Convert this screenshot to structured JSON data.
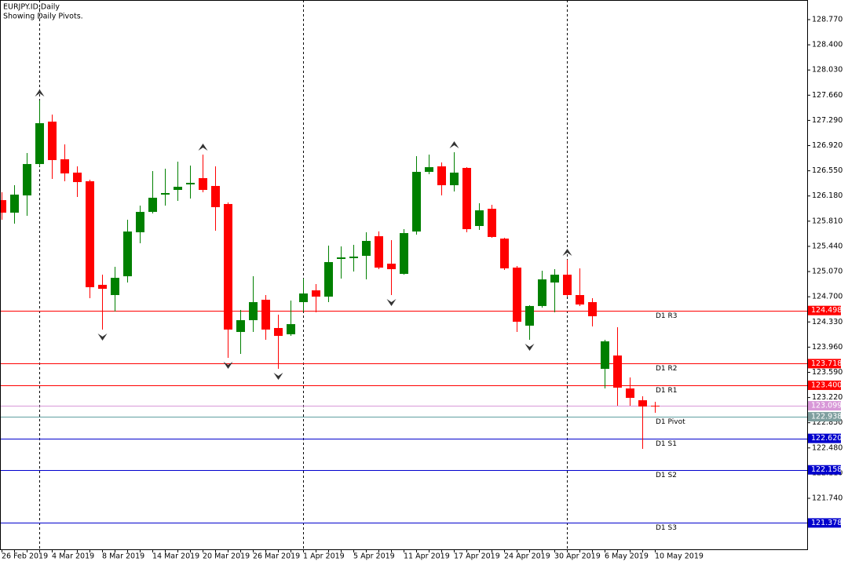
{
  "chart_data": {
    "type": "candlestick",
    "title": "EURJPY.ID,Daily",
    "subtitle": "Showing Daily Pivots.",
    "categories": [
      "26 Feb 2019",
      null,
      null,
      null,
      "4 Mar 2019",
      null,
      null,
      null,
      "8 Mar 2019",
      null,
      null,
      null,
      "14 Mar 2019",
      null,
      null,
      null,
      "20 Mar 2019",
      null,
      null,
      null,
      "26 Mar 2019",
      null,
      null,
      null,
      "1 Apr 2019",
      null,
      null,
      null,
      "5 Apr 2019",
      null,
      null,
      null,
      "11 Apr 2019",
      null,
      null,
      null,
      "17 Apr 2019",
      null,
      null,
      null,
      "24 Apr 2019",
      null,
      null,
      null,
      "30 Apr 2019",
      null,
      null,
      null,
      "6 May 2019",
      null,
      null,
      null,
      "10 May 2019"
    ],
    "open": [
      126.119,
      125.935,
      126.188,
      126.649,
      127.272,
      126.719,
      126.523,
      126.396,
      124.875,
      124.725,
      125.001,
      125.647,
      125.946,
      126.2,
      126.269,
      126.35,
      126.442,
      126.327,
      126.062,
      124.183,
      124.356,
      124.656,
      124.241,
      124.149,
      124.621,
      124.794,
      124.702,
      125.255,
      125.267,
      125.301,
      125.589,
      125.186,
      125.036,
      125.658,
      126.534,
      126.615,
      126.338,
      126.592,
      125.739,
      125.992,
      125.554,
      125.128,
      124.275,
      124.564,
      124.909,
      125.024,
      124.725,
      124.621,
      123.641,
      123.837,
      123.353,
      123.18,
      123.1
    ],
    "high": [
      126.234,
      126.338,
      126.811,
      127.583,
      127.376,
      126.937,
      126.615,
      126.419,
      125.024,
      125.14,
      125.831,
      126.039,
      126.546,
      126.58,
      126.684,
      126.626,
      126.788,
      126.615,
      126.085,
      124.506,
      125.001,
      124.725,
      124.437,
      124.644,
      124.967,
      124.886,
      125.451,
      125.439,
      125.462,
      125.647,
      125.66,
      125.532,
      125.693,
      126.765,
      126.788,
      126.672,
      126.822,
      126.603,
      126.073,
      126.05,
      125.566,
      125.151,
      124.575,
      125.082,
      125.105,
      125.243,
      125.117,
      124.679,
      124.068,
      124.252,
      123.515,
      123.238,
      123.157
    ],
    "low": [
      125.831,
      125.774,
      125.889,
      126.615,
      126.43,
      126.396,
      126.165,
      124.679,
      124.218,
      124.483,
      124.909,
      125.485,
      125.923,
      126.039,
      126.108,
      126.142,
      126.234,
      125.67,
      123.803,
      123.86,
      124.183,
      124.068,
      123.641,
      124.125,
      124.483,
      124.471,
      124.621,
      124.967,
      125.07,
      124.955,
      125.105,
      124.725,
      125.024,
      125.612,
      126.5,
      126.188,
      126.246,
      125.647,
      125.681,
      125.566,
      125.093,
      124.183,
      124.068,
      124.54,
      124.471,
      124.702,
      124.564,
      124.264,
      123.353,
      123.1,
      123.1,
      122.466,
      122.996
    ],
    "close": [
      125.935,
      126.2,
      126.649,
      127.249,
      126.707,
      126.511,
      126.384,
      124.84,
      124.817,
      124.978,
      125.658,
      125.946,
      126.154,
      126.223,
      126.315,
      126.373,
      126.269,
      126.016,
      124.218,
      124.356,
      124.621,
      124.218,
      124.125,
      124.298,
      124.748,
      124.702,
      125.209,
      125.278,
      125.29,
      125.52,
      125.128,
      125.105,
      125.635,
      126.534,
      126.603,
      126.338,
      126.523,
      125.693,
      125.969,
      125.578,
      125.117,
      124.333,
      124.564,
      124.955,
      125.024,
      124.725,
      124.586,
      124.414,
      124.045,
      123.365,
      123.215,
      123.088,
      123.099
    ],
    "up_color": "#008000",
    "down_color": "#ff0000",
    "fractals": true,
    "ylim": [
      120.991,
      129.058
    ],
    "yticks": [
      {
        "value": 121.74,
        "label": "121.740"
      },
      {
        "value": 122.11,
        "label": "122.110"
      },
      {
        "value": 122.48,
        "label": "122.480"
      },
      {
        "value": 122.85,
        "label": "122.850"
      },
      {
        "value": 123.22,
        "label": "123.220"
      },
      {
        "value": 123.59,
        "label": "123.590"
      },
      {
        "value": 123.96,
        "label": "123.960"
      },
      {
        "value": 124.33,
        "label": "124.330"
      },
      {
        "value": 124.7,
        "label": "124.700"
      },
      {
        "value": 125.07,
        "label": "125.070"
      },
      {
        "value": 125.44,
        "label": "125.440"
      },
      {
        "value": 125.81,
        "label": "125.810"
      },
      {
        "value": 126.18,
        "label": "126.180"
      },
      {
        "value": 126.55,
        "label": "126.550"
      },
      {
        "value": 126.92,
        "label": "126.920"
      },
      {
        "value": 127.29,
        "label": "127.290"
      },
      {
        "value": 127.66,
        "label": "127.660"
      },
      {
        "value": 128.03,
        "label": "128.030"
      },
      {
        "value": 128.4,
        "label": "128.400"
      },
      {
        "value": 128.77,
        "label": "128.770"
      }
    ],
    "price_line": {
      "value": 123.099,
      "label": "123.099",
      "color": "#d898d8"
    },
    "levels": [
      {
        "name": "D1 R3",
        "value": 124.498,
        "label": "124.498",
        "color": "#ff0000"
      },
      {
        "name": "D1 R2",
        "value": 123.718,
        "label": "123.718",
        "color": "#ff0000"
      },
      {
        "name": "D1 R1",
        "value": 123.4,
        "label": "123.400",
        "color": "#ff0000"
      },
      {
        "name": "D1 Pivot",
        "value": 122.938,
        "label": "122.938",
        "color": "#5f9ea0"
      },
      {
        "name": "D1 S1",
        "value": 122.62,
        "label": "122.620",
        "color": "#0000cd"
      },
      {
        "name": "D1 S2",
        "value": 122.158,
        "label": "122.158",
        "color": "#0000cd"
      },
      {
        "name": "D1 S3",
        "value": 121.378,
        "label": "121.378",
        "color": "#0000cd"
      }
    ]
  }
}
